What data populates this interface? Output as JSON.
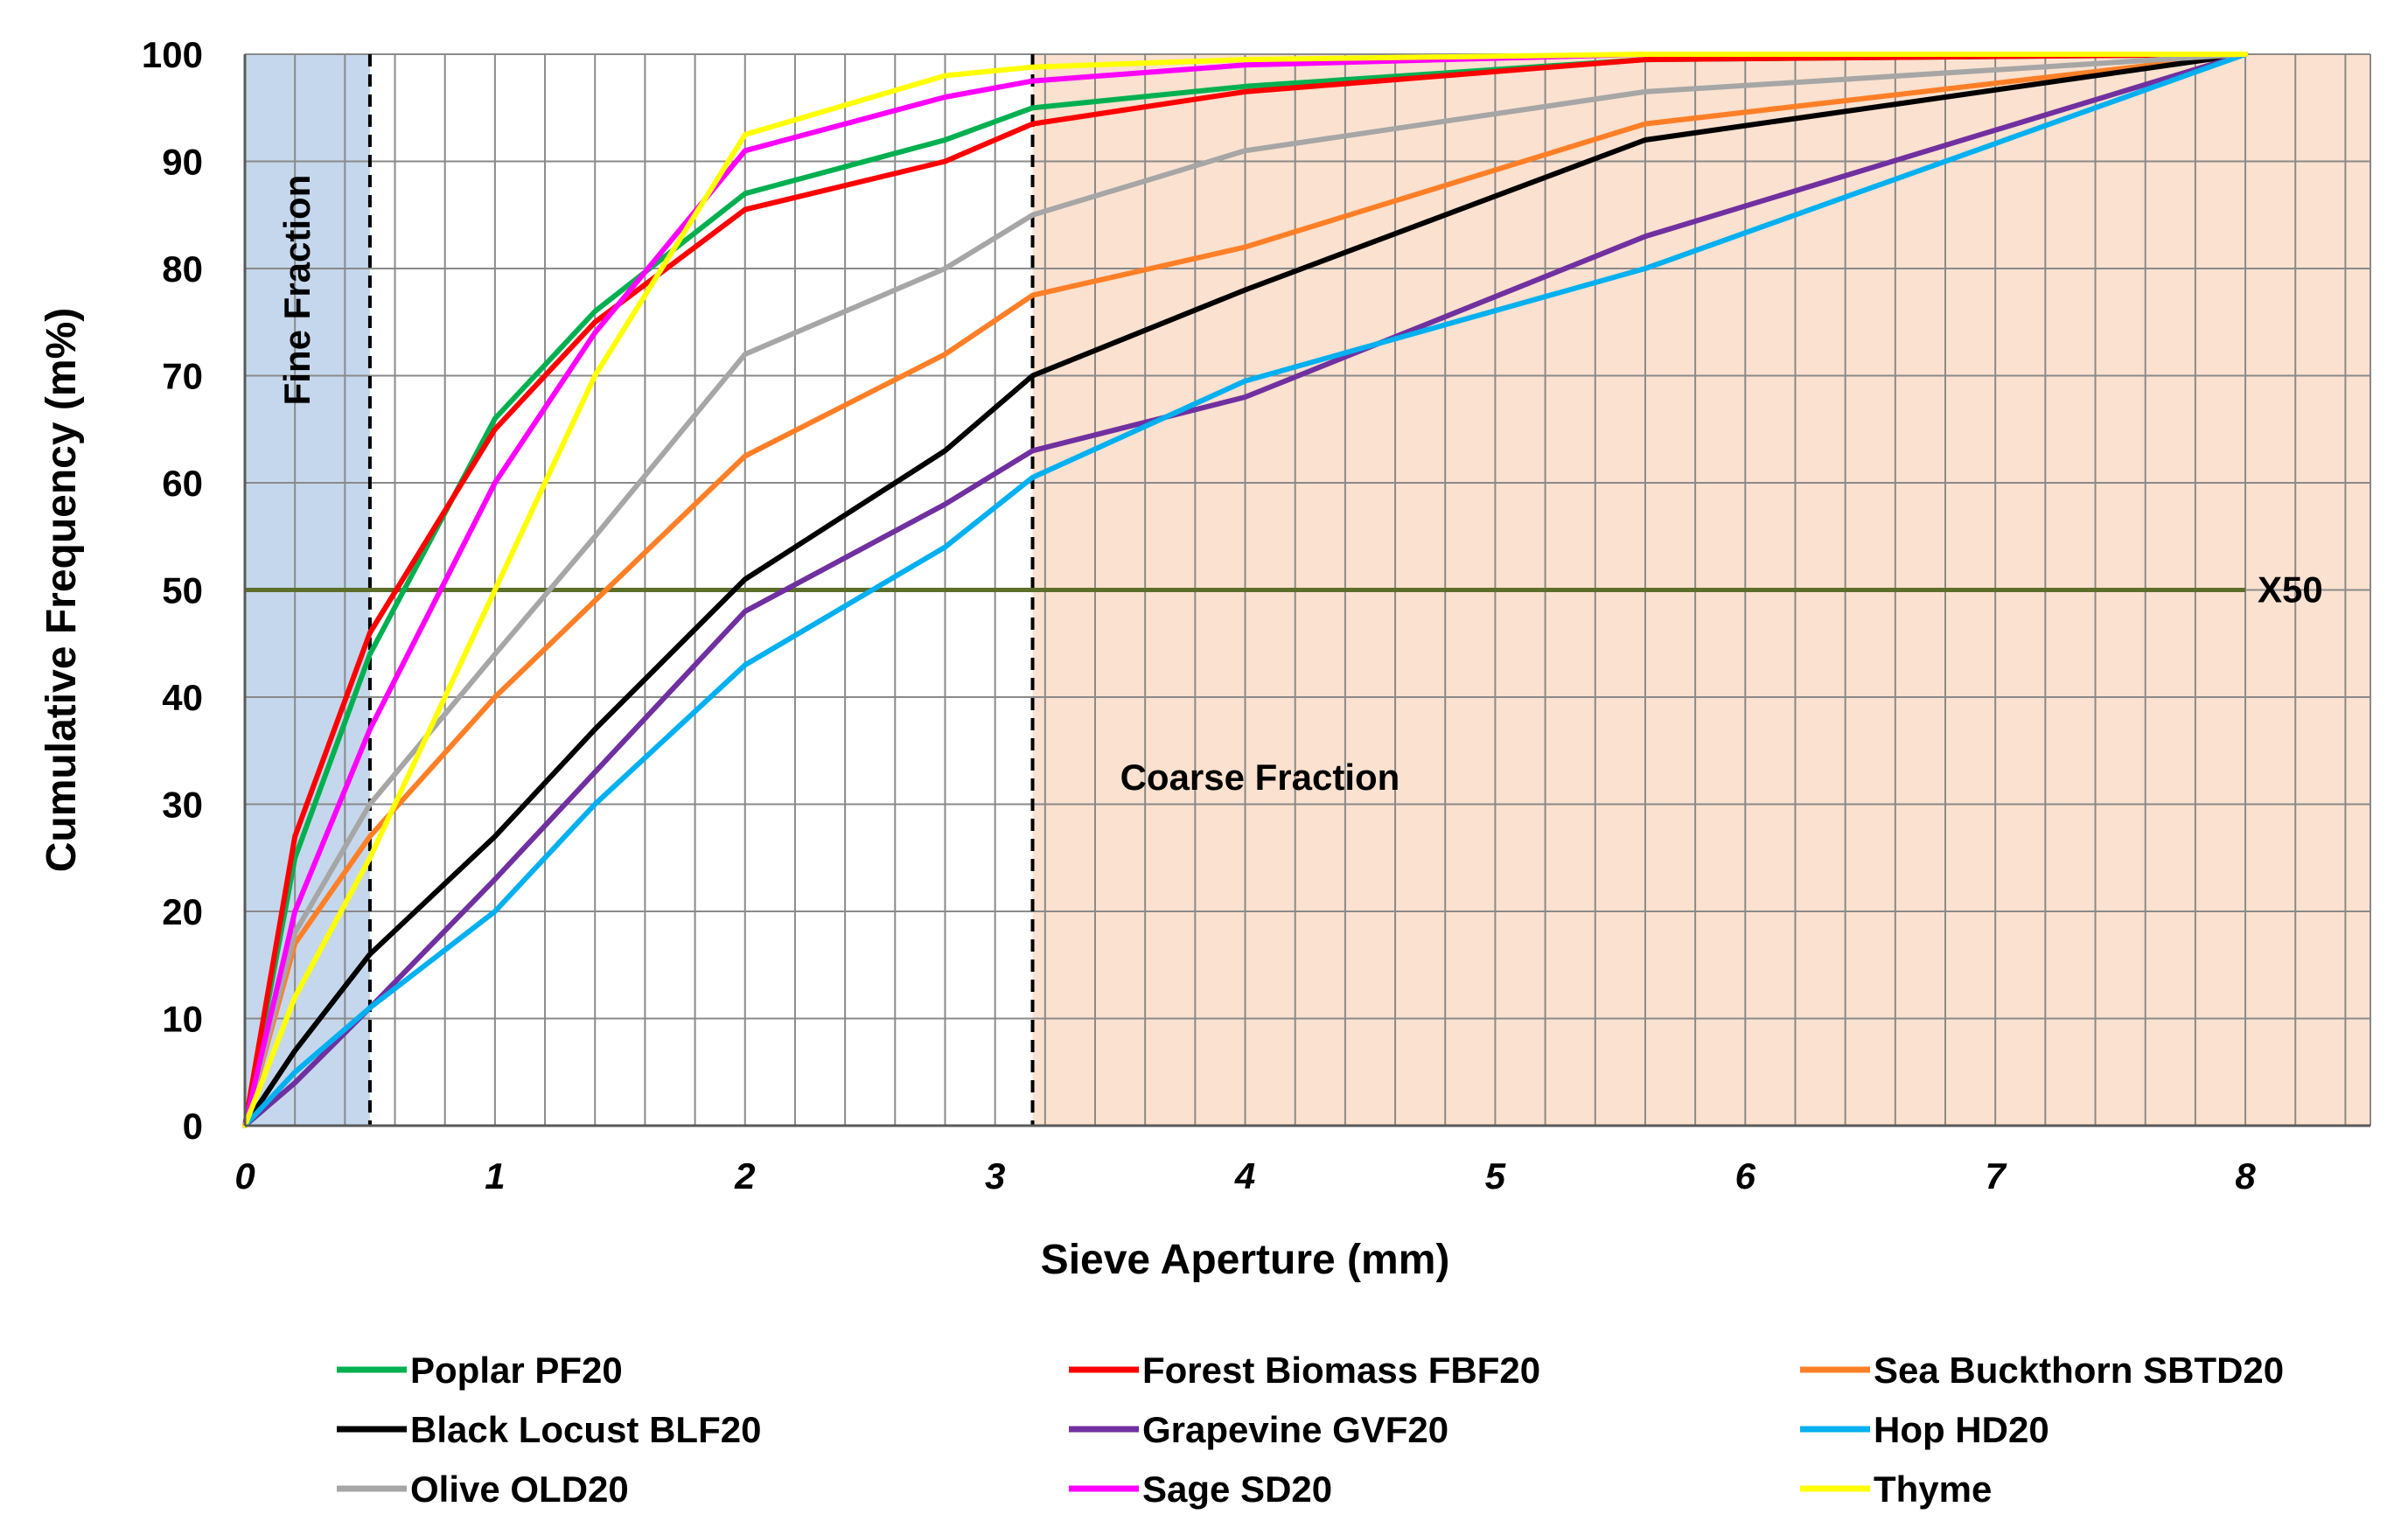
{
  "chart_data": {
    "type": "line",
    "title": "",
    "xlabel": "Sieve Aperture  (mm)",
    "ylabel": "Cumulative Frequency (m%)",
    "xlim": [
      0,
      8.5
    ],
    "ylim": [
      0,
      100
    ],
    "x_ticks": [
      "0",
      "1",
      "2",
      "3",
      "4",
      "5",
      "6",
      "7",
      "8"
    ],
    "y_ticks": [
      "0",
      "10",
      "20",
      "30",
      "40",
      "50",
      "60",
      "70",
      "80",
      "90",
      "100"
    ],
    "grid": true,
    "regions": {
      "fine": {
        "label": "Fine Fraction",
        "x_range": [
          0,
          0.5
        ],
        "color": "#c5d7ec"
      },
      "coarse": {
        "label": "Coarse Fraction",
        "x_range": [
          3.15,
          8.5
        ],
        "color": "#fbe1cf"
      }
    },
    "vertical_markers": [
      0.5,
      3.15
    ],
    "reference_line": {
      "label": "X50",
      "y": 50,
      "x_range": [
        0,
        8
      ],
      "color": "#5c6e2a"
    },
    "x": [
      0,
      0.2,
      0.5,
      1,
      1.4,
      2,
      2.8,
      3.15,
      4,
      5.6,
      8
    ],
    "series": [
      {
        "name": "Poplar PF20",
        "color": "#00b050",
        "values": [
          0,
          25,
          44,
          66,
          76,
          87,
          92,
          95,
          97,
          99.5,
          100
        ]
      },
      {
        "name": "Forest Biomass FBF20",
        "color": "#ff0000",
        "values": [
          0,
          27,
          46,
          65,
          75,
          85.5,
          90,
          93.5,
          96.5,
          99.5,
          100
        ]
      },
      {
        "name": "Sea Buckthorn SBTD20",
        "color": "#ff7f27",
        "values": [
          0,
          17,
          27,
          40,
          49,
          62.5,
          72,
          77.5,
          82,
          93.5,
          100
        ]
      },
      {
        "name": "Black Locust BLF20",
        "color": "#000000",
        "values": [
          0,
          7,
          16,
          27,
          37,
          51,
          63,
          70,
          78,
          92,
          100
        ]
      },
      {
        "name": "Grapevine GVF20",
        "color": "#7030a0",
        "values": [
          0,
          4,
          11,
          23,
          33,
          48,
          58,
          63,
          68,
          83,
          100
        ]
      },
      {
        "name": "Hop HD20",
        "color": "#00b0f0",
        "values": [
          0,
          5,
          11,
          20,
          30,
          43,
          54,
          60.5,
          69.5,
          80,
          100
        ]
      },
      {
        "name": "Olive OLD20",
        "color": "#a6a6a6",
        "values": [
          0,
          18,
          30,
          44,
          55,
          72,
          80,
          85,
          91,
          96.5,
          100
        ]
      },
      {
        "name": "Sage SD20",
        "color": "#ff00ff",
        "values": [
          0,
          20,
          37,
          60,
          74,
          91,
          96,
          97.5,
          99,
          100,
          100
        ]
      },
      {
        "name": "Thyme",
        "color": "#ffff00",
        "values": [
          0,
          12,
          25,
          50,
          70,
          92.5,
          98,
          98.8,
          99.5,
          100,
          100
        ]
      }
    ],
    "legend_position": "bottom"
  }
}
